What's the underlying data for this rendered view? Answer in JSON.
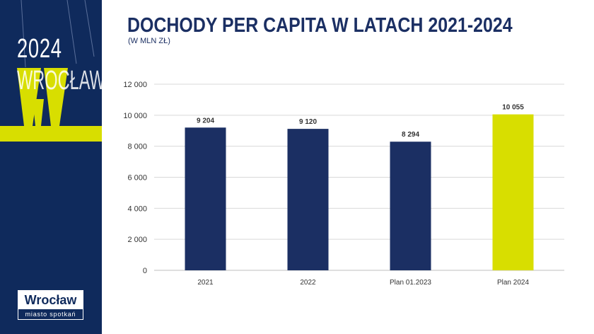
{
  "sidebar": {
    "year": "2024",
    "city": "WROCŁAW",
    "letter": "W",
    "logo_main": "Wrocław",
    "logo_sub": "miasto spotkań"
  },
  "colors": {
    "navy": "#1b2f63",
    "sidebar_bg": "#0f2a5c",
    "accent": "#d8de00"
  },
  "chart_data": {
    "type": "bar",
    "title": "DOCHODY PER CAPITA W LATACH 2021-2024",
    "subtitle": "(W MLN ZŁ)",
    "categories": [
      "2021",
      "2022",
      "Plan 01.2023",
      "Plan 2024"
    ],
    "values": [
      9204,
      9120,
      8294,
      10055
    ],
    "data_labels": [
      "9 204",
      "9 120",
      "8 294",
      "10 055"
    ],
    "highlight_index": 3,
    "yticks": [
      0,
      2000,
      4000,
      6000,
      8000,
      10000,
      12000
    ],
    "ytick_labels": [
      "0",
      "2 000",
      "4 000",
      "6 000",
      "8 000",
      "10 000",
      "12 000"
    ],
    "ylim": [
      0,
      12000
    ],
    "grid": true,
    "xlabel": "",
    "ylabel": ""
  }
}
